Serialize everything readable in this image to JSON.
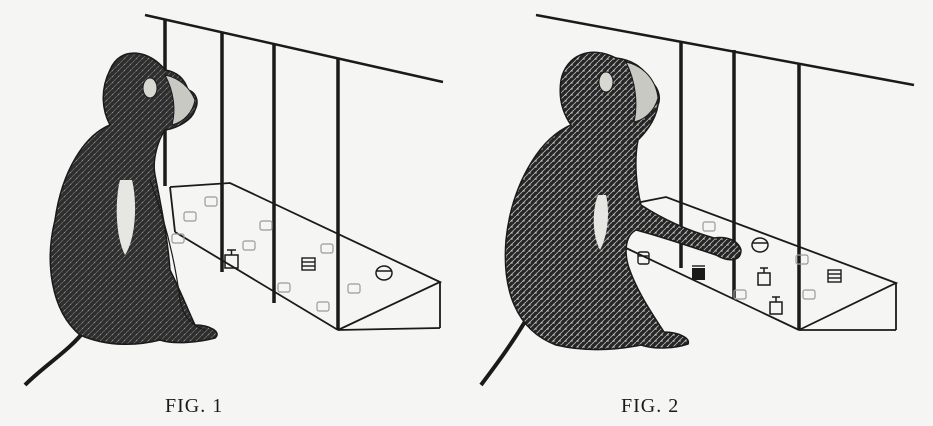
{
  "figures": [
    {
      "caption": "FIG. 1",
      "scene": "monkey-sitting-observing-apparatus",
      "visible_object_icons": [
        "cup-with-handle-icon",
        "striped-box-icon",
        "lidded-jar-icon"
      ]
    },
    {
      "caption": "FIG. 2",
      "scene": "monkey-reaching-through-bars",
      "visible_object_icons": [
        "small-jar-icon",
        "dark-box-icon",
        "lidded-jar-icon",
        "cup-with-handle-icon",
        "cup-with-handle-icon",
        "striped-box-icon"
      ]
    }
  ],
  "colors": {
    "background": "#f5f5f3",
    "ink": "#1a1a1a",
    "fur": "#2b2b2b"
  }
}
